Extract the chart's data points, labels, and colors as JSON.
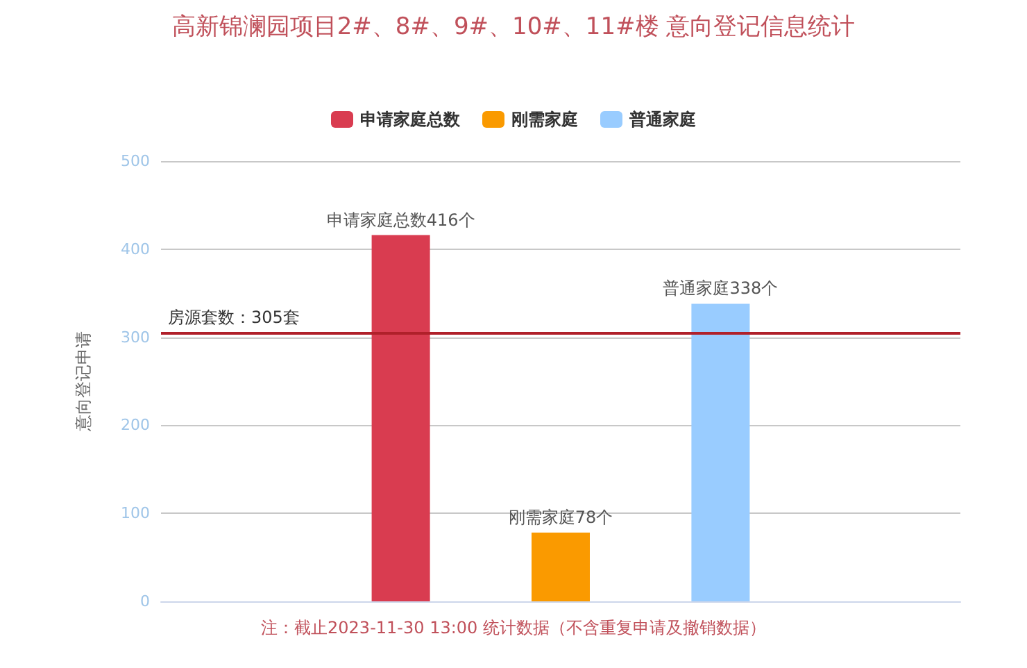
{
  "chart_data": {
    "type": "bar",
    "title": "高新锦澜园项目2#、8#、9#、10#、11#楼 意向登记信息统计",
    "ylabel": "意向登记申请",
    "categories": [
      null,
      null,
      null,
      null,
      null
    ],
    "series": [
      {
        "name": "申请家庭总数",
        "color": "#d93c50",
        "values": [
          null,
          416,
          null,
          null,
          null
        ],
        "value_labels": [
          null,
          "申请家庭总数416个",
          null,
          null,
          null
        ]
      },
      {
        "name": "刚需家庭",
        "color": "#fa9a00",
        "values": [
          null,
          null,
          78,
          null,
          null
        ],
        "value_labels": [
          null,
          null,
          "刚需家庭78个",
          null,
          null
        ]
      },
      {
        "name": "普通家庭",
        "color": "#99ccff",
        "values": [
          null,
          null,
          null,
          338,
          null
        ],
        "value_labels": [
          null,
          null,
          null,
          "普通家庭338个",
          null
        ]
      }
    ],
    "ylim": [
      0,
      500
    ],
    "yticks": [
      0,
      100,
      200,
      300,
      400,
      500
    ],
    "grid": "y",
    "legend": "top",
    "ref_lines": [
      {
        "axis": "y",
        "value": 305,
        "label": "房源套数：305套",
        "color": "#b0202a"
      }
    ],
    "annotations": [
      "注：截止2023-11-30 13:00 统计数据（不含重复申请及撤销数据）"
    ]
  }
}
